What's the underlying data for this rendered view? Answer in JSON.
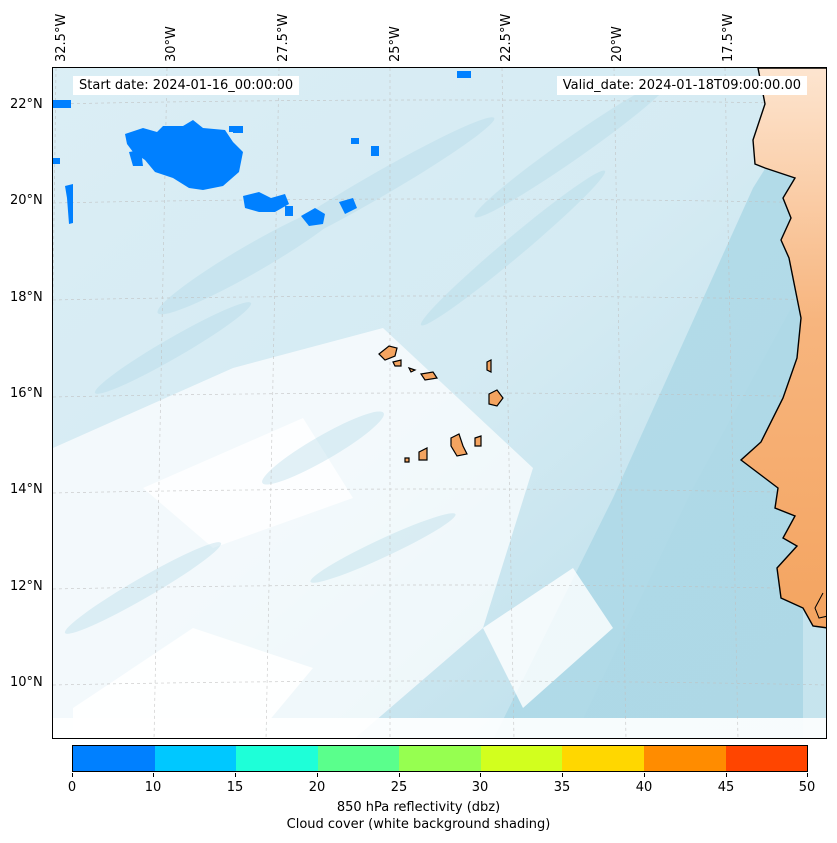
{
  "map": {
    "start_date": "Start date: 2024-01-16_00:00:00",
    "valid_date": "Valid_date: 2024-01-18T09:00:00.00",
    "lon_labels": [
      "32.5°W",
      "30°W",
      "27.5°W",
      "25°W",
      "22.5°W",
      "20°W",
      "17.5°W"
    ],
    "lat_labels": [
      "22°N",
      "20°N",
      "18°N",
      "16°N",
      "14°N",
      "12°N",
      "10°N"
    ],
    "colors": {
      "land": "#f4a460",
      "cloud": "#add8e6",
      "reflectivity_low": "#0080ff",
      "coastline": "#000000",
      "grid": "#c0c0c0"
    },
    "gridlines": "dashed"
  },
  "colorbar": {
    "title": "850 hPa reflectivity (dbz)",
    "subtitle": "Cloud cover (white background shading)",
    "ticks": [
      "0",
      "10",
      "15",
      "20",
      "25",
      "30",
      "35",
      "40",
      "45",
      "50"
    ],
    "colors": [
      "#0080ff",
      "#00c8ff",
      "#1effd8",
      "#5aff8c",
      "#96ff50",
      "#d2ff1e",
      "#ffd700",
      "#ff8c00",
      "#ff4500"
    ]
  }
}
